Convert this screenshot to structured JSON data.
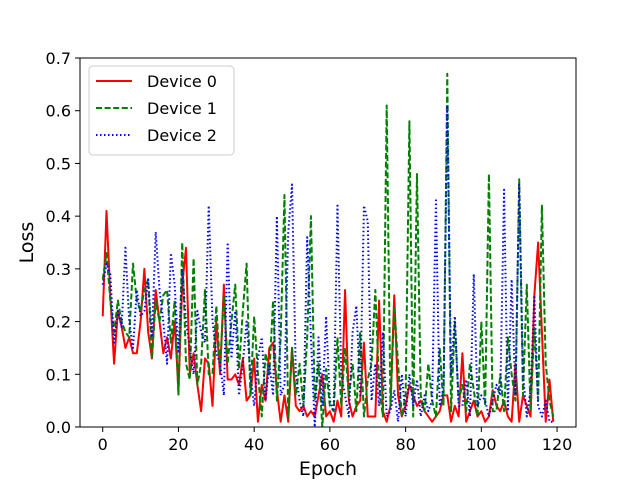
{
  "chart_data": {
    "type": "line",
    "title": "",
    "xlabel": "Epoch",
    "ylabel": "Loss",
    "xlim": [
      -6,
      125
    ],
    "ylim": [
      0,
      0.7
    ],
    "xticks": [
      0,
      20,
      40,
      60,
      80,
      100,
      120
    ],
    "yticks": [
      0.0,
      0.1,
      0.2,
      0.3,
      0.4,
      0.5,
      0.6,
      0.7
    ],
    "xtick_labels": [
      "0",
      "20",
      "40",
      "60",
      "80",
      "100",
      "120"
    ],
    "ytick_labels": [
      "0.0",
      "0.1",
      "0.2",
      "0.3",
      "0.4",
      "0.5",
      "0.6",
      "0.7"
    ],
    "grid": false,
    "legend_position": "upper-left",
    "series": [
      {
        "name": "Device 0",
        "color": "#ff0000",
        "style": "solid",
        "x": [
          0,
          1,
          2,
          3,
          4,
          5,
          6,
          7,
          8,
          9,
          10,
          11,
          12,
          13,
          14,
          15,
          16,
          17,
          18,
          19,
          20,
          21,
          22,
          23,
          24,
          25,
          26,
          27,
          28,
          29,
          30,
          31,
          32,
          33,
          34,
          35,
          36,
          37,
          38,
          39,
          40,
          41,
          42,
          43,
          44,
          45,
          46,
          47,
          48,
          49,
          50,
          51,
          52,
          53,
          54,
          55,
          56,
          57,
          58,
          59,
          60,
          61,
          62,
          63,
          64,
          65,
          66,
          67,
          68,
          69,
          70,
          71,
          72,
          73,
          74,
          75,
          76,
          77,
          78,
          79,
          80,
          81,
          82,
          83,
          84,
          85,
          86,
          87,
          88,
          89,
          90,
          91,
          92,
          93,
          94,
          95,
          96,
          97,
          98,
          99,
          100,
          101,
          102,
          103,
          104,
          105,
          106,
          107,
          108,
          109,
          110,
          111,
          112,
          113,
          114,
          115,
          116,
          117,
          118,
          119
        ],
        "y": [
          0.21,
          0.41,
          0.25,
          0.12,
          0.22,
          0.19,
          0.15,
          0.17,
          0.14,
          0.14,
          0.2,
          0.3,
          0.18,
          0.13,
          0.26,
          0.2,
          0.14,
          0.17,
          0.13,
          0.2,
          0.07,
          0.27,
          0.34,
          0.1,
          0.14,
          0.08,
          0.03,
          0.13,
          0.12,
          0.04,
          0.2,
          0.1,
          0.27,
          0.09,
          0.09,
          0.1,
          0.08,
          0.13,
          0.05,
          0.06,
          0.13,
          0.01,
          0.08,
          0.05,
          0.15,
          0.16,
          0.07,
          0.01,
          0.06,
          0.01,
          0.15,
          0.04,
          0.03,
          0.04,
          0.02,
          0.03,
          0.02,
          0.06,
          0.1,
          0.02,
          0.03,
          0.01,
          0.05,
          0.02,
          0.26,
          0.05,
          0.02,
          0.04,
          0.05,
          0.16,
          0.02,
          0.02,
          0.02,
          0.24,
          0.03,
          0.01,
          0.04,
          0.25,
          0.06,
          0.02,
          0.04,
          0.08,
          0.06,
          0.04,
          0.05,
          0.03,
          0.02,
          0.01,
          0.02,
          0.03,
          0.06,
          0.06,
          0.01,
          0.04,
          0.02,
          0.14,
          0.01,
          0.03,
          0.05,
          0.02,
          0.03,
          0.01,
          0.02,
          0.07,
          0.04,
          0.03,
          0.05,
          0.02,
          0.01,
          0.12,
          0.01,
          0.06,
          0.04,
          0.02,
          0.25,
          0.35,
          0.18,
          0.01,
          0.09,
          0.01
        ]
      },
      {
        "name": "Device 1",
        "color": "#008000",
        "style": "dashed",
        "x": [
          0,
          1,
          2,
          3,
          4,
          5,
          6,
          7,
          8,
          9,
          10,
          11,
          12,
          13,
          14,
          15,
          16,
          17,
          18,
          19,
          20,
          21,
          22,
          23,
          24,
          25,
          26,
          27,
          28,
          29,
          30,
          31,
          32,
          33,
          34,
          35,
          36,
          37,
          38,
          39,
          40,
          41,
          42,
          43,
          44,
          45,
          46,
          47,
          48,
          49,
          50,
          51,
          52,
          53,
          54,
          55,
          56,
          57,
          58,
          59,
          60,
          61,
          62,
          63,
          64,
          65,
          66,
          67,
          68,
          69,
          70,
          71,
          72,
          73,
          74,
          75,
          76,
          77,
          78,
          79,
          80,
          81,
          82,
          83,
          84,
          85,
          86,
          87,
          88,
          89,
          90,
          91,
          92,
          93,
          94,
          95,
          96,
          97,
          98,
          99,
          100,
          101,
          102,
          103,
          104,
          105,
          106,
          107,
          108,
          109,
          110,
          111,
          112,
          113,
          114,
          115,
          116,
          117,
          118,
          119
        ],
        "y": [
          0.28,
          0.33,
          0.24,
          0.18,
          0.24,
          0.2,
          0.18,
          0.17,
          0.31,
          0.24,
          0.22,
          0.26,
          0.28,
          0.13,
          0.24,
          0.2,
          0.25,
          0.26,
          0.16,
          0.24,
          0.06,
          0.35,
          0.12,
          0.09,
          0.32,
          0.08,
          0.12,
          0.26,
          0.1,
          0.1,
          0.23,
          0.11,
          0.25,
          0.12,
          0.2,
          0.27,
          0.11,
          0.22,
          0.31,
          0.06,
          0.21,
          0.1,
          0.02,
          0.14,
          0.1,
          0.24,
          0.05,
          0.17,
          0.44,
          0.02,
          0.15,
          0.06,
          0.12,
          0.04,
          0.17,
          0.4,
          0.05,
          0.12,
          0.0,
          0.11,
          0.04,
          0.03,
          0.17,
          0.04,
          0.15,
          0.06,
          0.12,
          0.03,
          0.18,
          0.02,
          0.09,
          0.12,
          0.26,
          0.08,
          0.02,
          0.61,
          0.04,
          0.23,
          0.12,
          0.02,
          0.06,
          0.58,
          0.02,
          0.48,
          0.06,
          0.03,
          0.12,
          0.05,
          0.02,
          0.15,
          0.04,
          0.67,
          0.03,
          0.2,
          0.05,
          0.08,
          0.03,
          0.12,
          0.07,
          0.02,
          0.2,
          0.04,
          0.48,
          0.03,
          0.03,
          0.1,
          0.03,
          0.17,
          0.1,
          0.05,
          0.47,
          0.06,
          0.27,
          0.03,
          0.19,
          0.05,
          0.42,
          0.12,
          0.05,
          0.02
        ]
      },
      {
        "name": "Device 2",
        "color": "#0000ff",
        "style": "dotted",
        "x": [
          0,
          1,
          2,
          3,
          4,
          5,
          6,
          7,
          8,
          9,
          10,
          11,
          12,
          13,
          14,
          15,
          16,
          17,
          18,
          19,
          20,
          21,
          22,
          23,
          24,
          25,
          26,
          27,
          28,
          29,
          30,
          31,
          32,
          33,
          34,
          35,
          36,
          37,
          38,
          39,
          40,
          41,
          42,
          43,
          44,
          45,
          46,
          47,
          48,
          49,
          50,
          51,
          52,
          53,
          54,
          55,
          56,
          57,
          58,
          59,
          60,
          61,
          62,
          63,
          64,
          65,
          66,
          67,
          68,
          69,
          70,
          71,
          72,
          73,
          74,
          75,
          76,
          77,
          78,
          79,
          80,
          81,
          82,
          83,
          84,
          85,
          86,
          87,
          88,
          89,
          90,
          91,
          92,
          93,
          94,
          95,
          96,
          97,
          98,
          99,
          100,
          101,
          102,
          103,
          104,
          105,
          106,
          107,
          108,
          109,
          110,
          111,
          112,
          113,
          114,
          115,
          116,
          117,
          118,
          119
        ],
        "y": [
          0.27,
          0.31,
          0.29,
          0.16,
          0.22,
          0.19,
          0.34,
          0.2,
          0.15,
          0.26,
          0.21,
          0.22,
          0.28,
          0.17,
          0.37,
          0.26,
          0.2,
          0.12,
          0.33,
          0.27,
          0.14,
          0.3,
          0.2,
          0.15,
          0.1,
          0.22,
          0.18,
          0.16,
          0.42,
          0.2,
          0.14,
          0.12,
          0.06,
          0.35,
          0.13,
          0.22,
          0.06,
          0.12,
          0.2,
          0.1,
          0.04,
          0.13,
          0.17,
          0.05,
          0.12,
          0.06,
          0.4,
          0.06,
          0.08,
          0.37,
          0.46,
          0.1,
          0.05,
          0.02,
          0.36,
          0.17,
          0.0,
          0.17,
          0.04,
          0.21,
          0.05,
          0.03,
          0.42,
          0.1,
          0.06,
          0.02,
          0.18,
          0.23,
          0.06,
          0.42,
          0.39,
          0.05,
          0.12,
          0.04,
          0.18,
          0.02,
          0.03,
          0.07,
          0.01,
          0.1,
          0.02,
          0.1,
          0.04,
          0.09,
          0.02,
          0.06,
          0.03,
          0.05,
          0.43,
          0.04,
          0.07,
          0.61,
          0.1,
          0.21,
          0.04,
          0.04,
          0.09,
          0.02,
          0.29,
          0.04,
          0.06,
          0.05,
          0.02,
          0.05,
          0.08,
          0.06,
          0.45,
          0.03,
          0.28,
          0.06,
          0.46,
          0.1,
          0.02,
          0.07,
          0.25,
          0.04,
          0.02,
          0.05,
          0.01,
          0.01
        ]
      }
    ]
  }
}
